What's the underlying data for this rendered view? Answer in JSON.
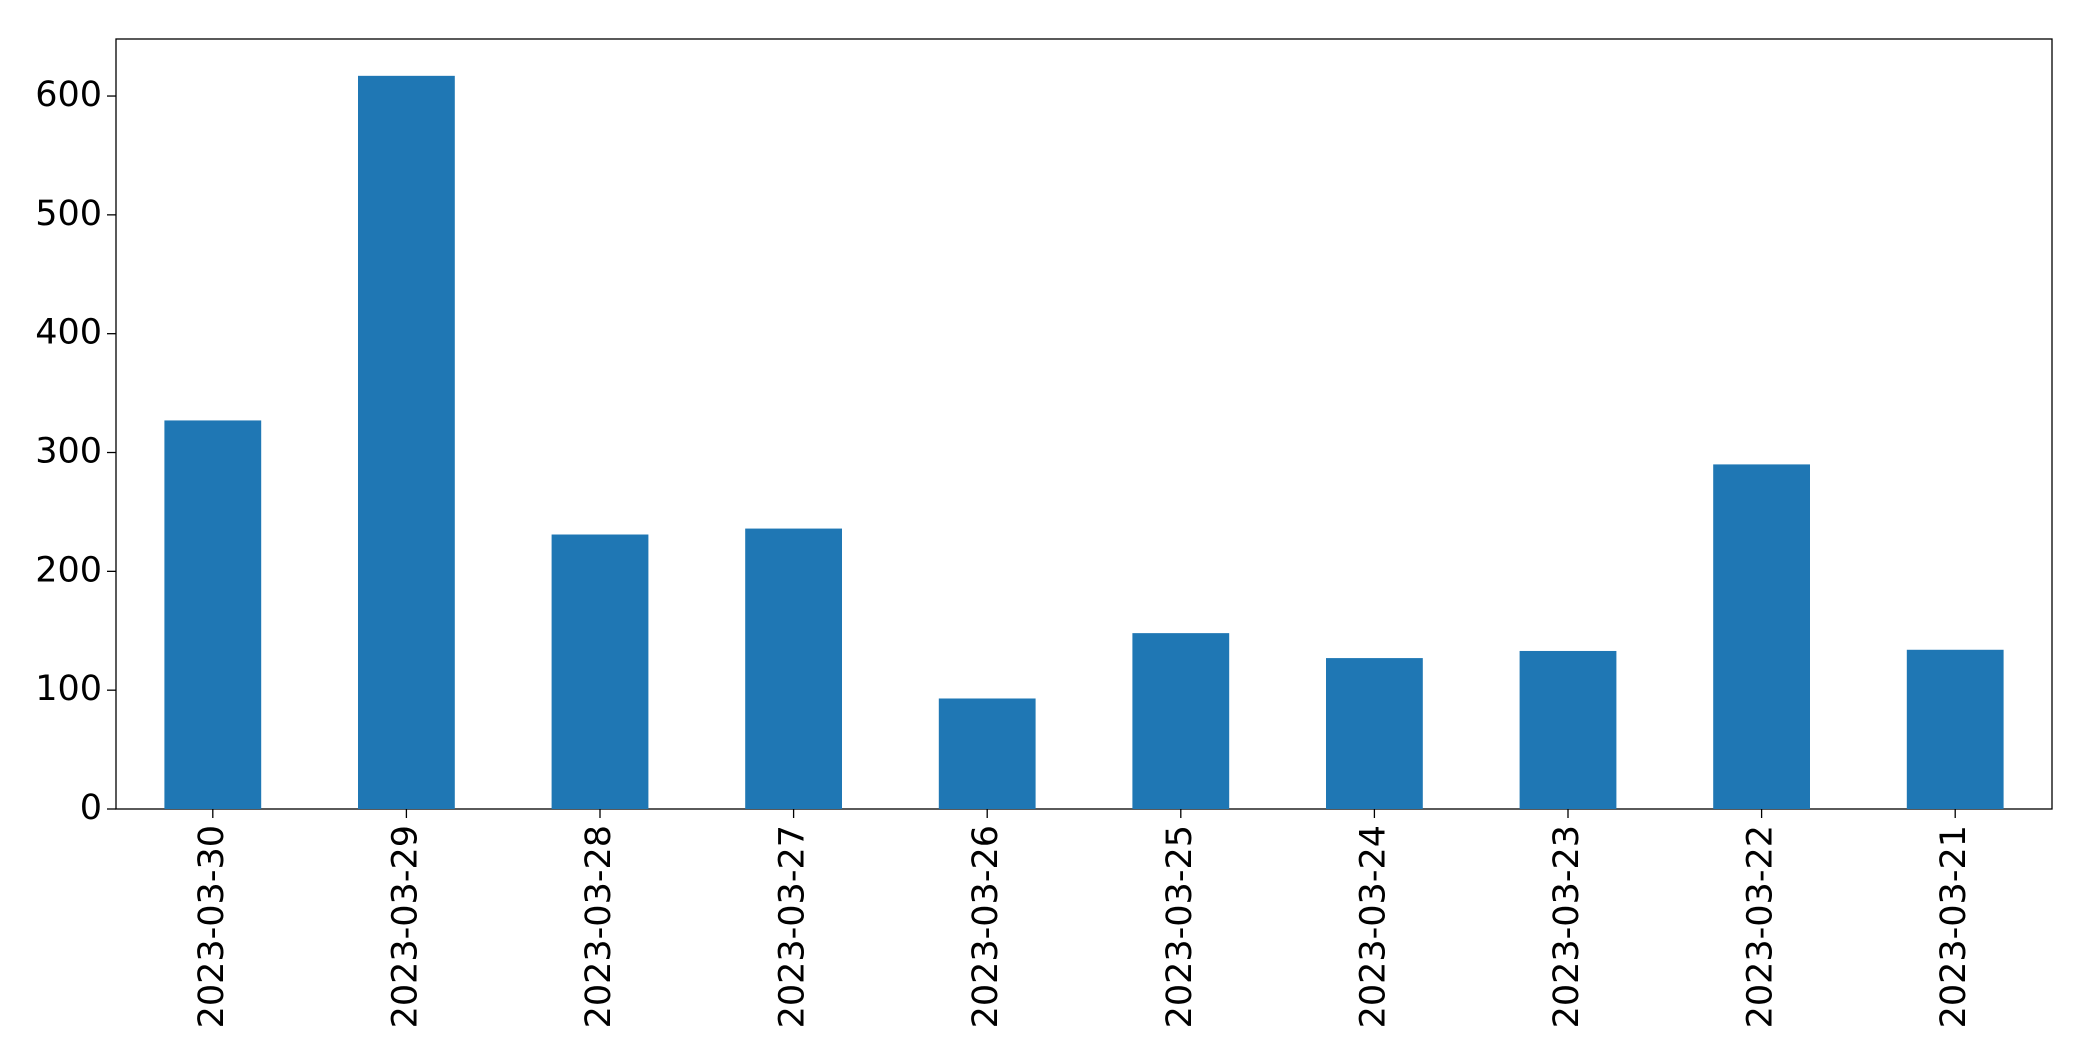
{
  "chart_data": {
    "type": "bar",
    "categories": [
      "2023-03-30",
      "2023-03-29",
      "2023-03-28",
      "2023-03-27",
      "2023-03-26",
      "2023-03-25",
      "2023-03-24",
      "2023-03-23",
      "2023-03-22",
      "2023-03-21"
    ],
    "values": [
      327,
      617,
      231,
      236,
      93,
      148,
      127,
      133,
      290,
      134
    ],
    "color": "#1f77b4",
    "ylim": [
      0,
      648
    ],
    "yticks": [
      0,
      100,
      200,
      300,
      400,
      500,
      600
    ],
    "grid": false
  }
}
